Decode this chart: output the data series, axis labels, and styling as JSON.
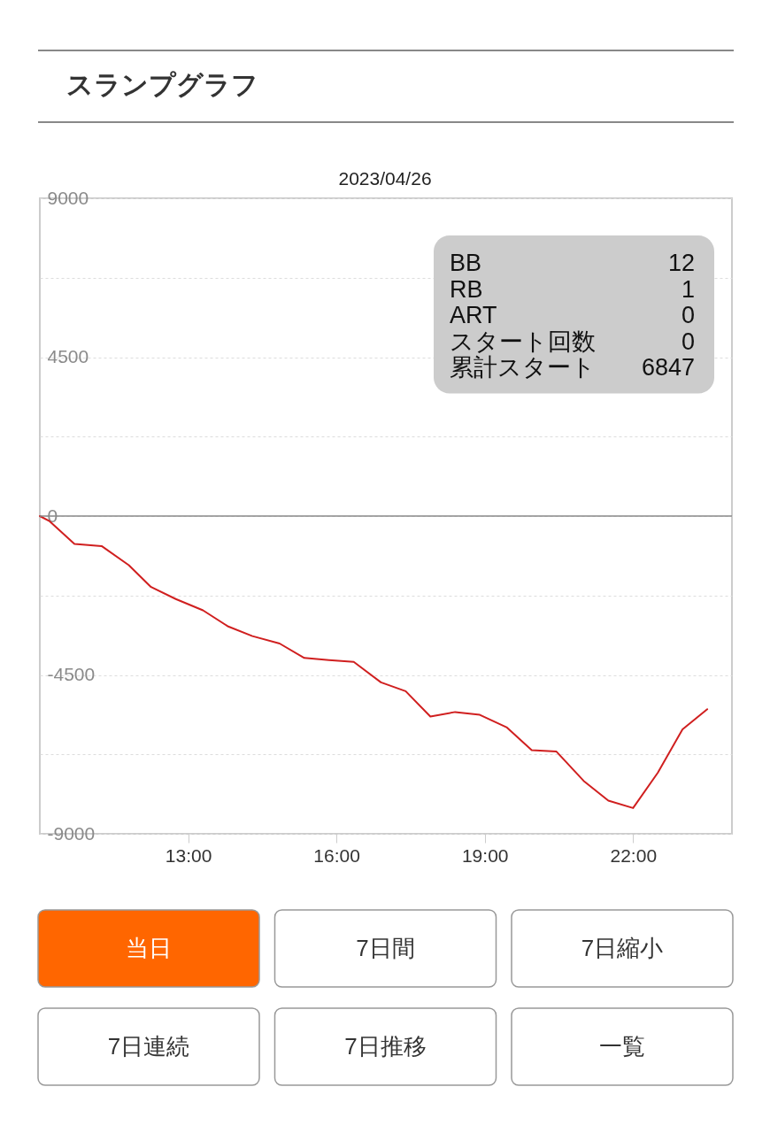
{
  "chart_data": {
    "type": "line",
    "title": "スランプグラフ",
    "subtitle": "2023/04/26",
    "x": [
      10.0,
      10.2,
      10.7,
      11.25,
      11.8,
      12.25,
      12.75,
      13.3,
      13.8,
      14.3,
      14.85,
      15.35,
      15.85,
      16.35,
      16.9,
      17.4,
      17.9,
      18.4,
      18.9,
      19.45,
      19.95,
      20.45,
      21.0,
      21.5,
      22.0,
      22.5,
      23.0,
      23.5
    ],
    "series": [
      {
        "color": "#d01f1f",
        "values": [
          0,
          -150,
          -790,
          -850,
          -1390,
          -2010,
          -2350,
          -2670,
          -3120,
          -3400,
          -3610,
          -4020,
          -4080,
          -4130,
          -4710,
          -4960,
          -5680,
          -5550,
          -5630,
          -5990,
          -6630,
          -6670,
          -7500,
          -8060,
          -8270,
          -7270,
          -6040,
          -5470
        ]
      }
    ],
    "xlim": [
      10,
      24
    ],
    "xticks": [
      {
        "value": 13,
        "label": "13:00"
      },
      {
        "value": 16,
        "label": "16:00"
      },
      {
        "value": 19,
        "label": "19:00"
      },
      {
        "value": 22,
        "label": "22:00"
      }
    ],
    "ylim": [
      -9000,
      9000
    ],
    "yticks": [
      -9000,
      {
        "value": -6750,
        "label": null
      },
      -4500,
      {
        "value": -2250,
        "label": null
      },
      0,
      {
        "value": 2250,
        "label": null
      },
      4500,
      {
        "value": 6750,
        "label": null
      },
      9000
    ],
    "grid": "y",
    "ref_lines": [
      {
        "axis": "y",
        "value": 0,
        "color": "#888888"
      }
    ],
    "annotations": [
      "BB",
      "12",
      "RB",
      "1",
      "ART",
      "0",
      "スタート回数",
      "0",
      "累計スタート",
      "6847",
      "当日",
      "7日間",
      "7日縮小",
      "7日連続",
      "7日推移",
      "一覧"
    ]
  }
}
